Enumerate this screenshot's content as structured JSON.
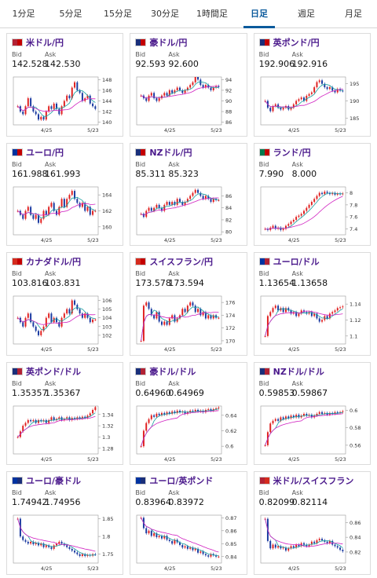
{
  "tabs": [
    {
      "label": "1分足",
      "active": false
    },
    {
      "label": "5分足",
      "active": false
    },
    {
      "label": "15分足",
      "active": false
    },
    {
      "label": "30分足",
      "active": false
    },
    {
      "label": "1時間足",
      "active": false
    },
    {
      "label": "日足",
      "active": true
    },
    {
      "label": "週足",
      "active": false
    },
    {
      "label": "月足",
      "active": false
    }
  ],
  "labels": {
    "bid": "Bid",
    "ask": "Ask"
  },
  "colors": {
    "up": "#e02020",
    "down": "#1a3aa0",
    "ma_short": "#18a0a0",
    "ma_long": "#d020c0",
    "tab_active": "#0a5a9c",
    "pair": "#4b1a8c"
  },
  "pairs": [
    {
      "name": "米ドル/円",
      "bid": "142.528",
      "ask": "142.530",
      "flags": [
        "#b22234",
        "#c40000"
      ],
      "icon": "us-jp-flag-icon",
      "chart_data": {
        "type": "candlestick",
        "x_ticks": [
          "4/25",
          "5/23"
        ],
        "y_ticks": [
          "148",
          "146",
          "144",
          "142",
          "140"
        ],
        "ylim": [
          139.5,
          148.5
        ],
        "close": [
          143.0,
          142.0,
          141.5,
          143.0,
          144.5,
          143.0,
          142.0,
          141.5,
          140.5,
          141.0,
          140.5,
          142.0,
          143.0,
          142.5,
          143.5,
          142.5,
          141.5,
          143.0,
          144.0,
          145.0,
          144.5,
          146.5,
          147.5,
          146.0,
          145.5,
          144.0,
          144.5,
          145.0,
          143.5,
          143.0,
          142.5
        ]
      }
    },
    {
      "name": "豪ドル/円",
      "bid": "92.593",
      "ask": "92.600",
      "flags": [
        "#1a2f7a",
        "#c40000"
      ],
      "icon": "au-jp-flag-icon",
      "chart_data": {
        "type": "candlestick",
        "x_ticks": [
          "4/25",
          "5/23"
        ],
        "y_ticks": [
          "94",
          "92",
          "90",
          "88",
          "86"
        ],
        "ylim": [
          85.5,
          94.5
        ],
        "close": [
          91.0,
          90.5,
          90.0,
          91.0,
          91.5,
          90.5,
          90.0,
          90.5,
          91.0,
          91.5,
          91.0,
          92.0,
          91.5,
          92.0,
          92.5,
          92.0,
          91.5,
          92.0,
          92.5,
          93.0,
          93.5,
          94.5,
          94.0,
          93.0,
          92.5,
          93.0,
          92.5,
          92.0,
          92.5,
          92.8,
          92.6
        ]
      }
    },
    {
      "name": "英ポンド/円",
      "bid": "192.906",
      "ask": "192.916",
      "flags": [
        "#1a2f7a",
        "#c40000"
      ],
      "icon": "gb-jp-flag-icon",
      "chart_data": {
        "type": "candlestick",
        "x_ticks": [
          "4/25",
          "5/23"
        ],
        "y_ticks": [
          "195",
          "190",
          "185"
        ],
        "ylim": [
          183.0,
          197.0
        ],
        "close": [
          190.0,
          188.0,
          187.0,
          188.5,
          189.0,
          188.0,
          187.5,
          188.0,
          188.5,
          187.5,
          188.0,
          189.0,
          190.0,
          190.5,
          191.0,
          190.0,
          191.5,
          192.0,
          192.5,
          194.0,
          195.5,
          196.0,
          195.0,
          194.0,
          193.5,
          194.0,
          193.0,
          192.5,
          193.5,
          193.0,
          192.9
        ]
      }
    },
    {
      "name": "ユーロ/円",
      "bid": "161.988",
      "ask": "161.993",
      "flags": [
        "#0033a0",
        "#c40000"
      ],
      "icon": "eu-jp-flag-icon",
      "chart_data": {
        "type": "candlestick",
        "x_ticks": [
          "4/25",
          "5/23"
        ],
        "y_ticks": [
          "164",
          "162",
          "160"
        ],
        "ylim": [
          159.0,
          165.0
        ],
        "close": [
          162.0,
          161.5,
          161.0,
          162.0,
          162.5,
          161.5,
          161.0,
          161.5,
          160.5,
          161.0,
          162.0,
          161.5,
          162.5,
          163.0,
          162.0,
          161.5,
          162.5,
          163.5,
          162.5,
          163.5,
          164.0,
          164.5,
          163.5,
          163.0,
          162.5,
          163.0,
          162.0,
          162.5,
          161.5,
          162.0,
          162.0
        ]
      }
    },
    {
      "name": "NZドル/円",
      "bid": "85.311",
      "ask": "85.323",
      "flags": [
        "#1a2f7a",
        "#c40000"
      ],
      "icon": "nz-jp-flag-icon",
      "chart_data": {
        "type": "candlestick",
        "x_ticks": [
          "4/25",
          "5/23"
        ],
        "y_ticks": [
          "86",
          "84",
          "82",
          "80"
        ],
        "ylim": [
          79.5,
          87.5
        ],
        "close": [
          83.0,
          82.5,
          83.5,
          84.0,
          83.5,
          84.0,
          84.5,
          84.0,
          83.5,
          84.5,
          85.0,
          84.5,
          85.0,
          84.5,
          85.5,
          85.0,
          84.5,
          85.0,
          85.5,
          86.0,
          86.5,
          87.0,
          86.5,
          86.0,
          85.5,
          86.0,
          85.5,
          85.0,
          85.5,
          85.3,
          85.3
        ]
      }
    },
    {
      "name": "ランド/円",
      "bid": "7.990",
      "ask": "8.000",
      "flags": [
        "#007a4d",
        "#c40000"
      ],
      "icon": "za-jp-flag-icon",
      "chart_data": {
        "type": "candlestick",
        "x_ticks": [
          "4/25",
          "5/23"
        ],
        "y_ticks": [
          "8",
          "7.8",
          "7.6",
          "7.4"
        ],
        "ylim": [
          7.3,
          8.1
        ],
        "close": [
          7.4,
          7.38,
          7.42,
          7.45,
          7.4,
          7.42,
          7.38,
          7.4,
          7.45,
          7.48,
          7.52,
          7.55,
          7.6,
          7.62,
          7.65,
          7.7,
          7.75,
          7.8,
          7.85,
          7.9,
          7.95,
          8.0,
          7.98,
          8.02,
          8.0,
          7.98,
          8.0,
          7.97,
          7.99,
          7.98,
          7.99
        ]
      }
    },
    {
      "name": "カナダドル/円",
      "bid": "103.816",
      "ask": "103.831",
      "flags": [
        "#d52b1e",
        "#c40000"
      ],
      "icon": "ca-jp-flag-icon",
      "chart_data": {
        "type": "candlestick",
        "x_ticks": [
          "4/25",
          "5/23"
        ],
        "y_ticks": [
          "106",
          "105",
          "104",
          "103",
          "102"
        ],
        "ylim": [
          101.0,
          106.5
        ],
        "close": [
          104.0,
          103.5,
          103.0,
          104.0,
          104.5,
          103.5,
          103.0,
          102.5,
          102.0,
          102.5,
          103.0,
          104.0,
          104.5,
          103.5,
          104.0,
          103.5,
          103.0,
          104.0,
          104.5,
          105.0,
          104.5,
          106.0,
          105.5,
          105.0,
          104.5,
          104.0,
          104.5,
          104.0,
          103.5,
          103.8,
          103.8
        ]
      }
    },
    {
      "name": "スイスフラン/円",
      "bid": "173.578",
      "ask": "173.594",
      "flags": [
        "#d52b1e",
        "#c40000"
      ],
      "icon": "ch-jp-flag-icon",
      "chart_data": {
        "type": "candlestick",
        "x_ticks": [
          "4/25",
          "5/23"
        ],
        "y_ticks": [
          "176",
          "174",
          "172",
          "170"
        ],
        "ylim": [
          169.5,
          177.0
        ],
        "close": [
          170.0,
          175.5,
          176.0,
          175.0,
          174.0,
          173.5,
          174.5,
          173.0,
          172.5,
          173.0,
          172.5,
          173.5,
          174.0,
          173.0,
          173.5,
          174.0,
          175.0,
          174.5,
          175.5,
          176.0,
          175.5,
          174.5,
          175.0,
          174.0,
          174.5,
          173.5,
          174.0,
          173.5,
          174.0,
          173.6,
          173.6
        ]
      }
    },
    {
      "name": "ユーロ/ドル",
      "bid": "1.13654",
      "ask": "1.13658",
      "flags": [
        "#0033a0",
        "#b22234"
      ],
      "icon": "eu-us-flag-icon",
      "chart_data": {
        "type": "candlestick",
        "x_ticks": [
          "4/25",
          "5/23"
        ],
        "y_ticks": [
          "1.14",
          "1.12",
          "1.1"
        ],
        "ylim": [
          1.09,
          1.15
        ],
        "close": [
          1.1,
          1.125,
          1.13,
          1.135,
          1.138,
          1.132,
          1.135,
          1.13,
          1.135,
          1.132,
          1.128,
          1.13,
          1.125,
          1.128,
          1.132,
          1.13,
          1.128,
          1.13,
          1.125,
          1.128,
          1.122,
          1.118,
          1.12,
          1.125,
          1.122,
          1.128,
          1.13,
          1.132,
          1.135,
          1.136,
          1.137
        ]
      }
    },
    {
      "name": "英ポンド/ドル",
      "bid": "1.35357",
      "ask": "1.35367",
      "flags": [
        "#1a2f7a",
        "#b22234"
      ],
      "icon": "gb-us-flag-icon",
      "chart_data": {
        "type": "candlestick",
        "x_ticks": [
          "4/25",
          "5/23"
        ],
        "y_ticks": [
          "1.34",
          "1.32",
          "1.3",
          "1.28"
        ],
        "ylim": [
          1.27,
          1.355
        ],
        "close": [
          1.3,
          1.31,
          1.32,
          1.325,
          1.33,
          1.328,
          1.33,
          1.325,
          1.33,
          1.328,
          1.33,
          1.325,
          1.33,
          1.335,
          1.33,
          1.332,
          1.335,
          1.33,
          1.332,
          1.335,
          1.33,
          1.334,
          1.332,
          1.335,
          1.333,
          1.336,
          1.334,
          1.338,
          1.342,
          1.348,
          1.353
        ]
      }
    },
    {
      "name": "豪ドル/ドル",
      "bid": "0.64960",
      "ask": "0.64969",
      "flags": [
        "#1a2f7a",
        "#b22234"
      ],
      "icon": "au-us-flag-icon",
      "chart_data": {
        "type": "candlestick",
        "x_ticks": [
          "4/25",
          "5/23"
        ],
        "y_ticks": [
          "0.64",
          "0.62",
          "0.6"
        ],
        "ylim": [
          0.59,
          0.652
        ],
        "close": [
          0.6,
          0.62,
          0.63,
          0.635,
          0.64,
          0.638,
          0.642,
          0.64,
          0.643,
          0.641,
          0.644,
          0.642,
          0.645,
          0.643,
          0.646,
          0.644,
          0.645,
          0.642,
          0.644,
          0.646,
          0.645,
          0.647,
          0.645,
          0.646,
          0.644,
          0.647,
          0.648,
          0.646,
          0.648,
          0.649,
          0.65
        ]
      }
    },
    {
      "name": "NZドル/ドル",
      "bid": "0.59853",
      "ask": "0.59867",
      "flags": [
        "#1a2f7a",
        "#b22234"
      ],
      "icon": "nz-us-flag-icon",
      "chart_data": {
        "type": "candlestick",
        "x_ticks": [
          "4/25",
          "5/23"
        ],
        "y_ticks": [
          "0.6",
          "0.58",
          "0.56"
        ],
        "ylim": [
          0.55,
          0.605
        ],
        "close": [
          0.56,
          0.575,
          0.585,
          0.588,
          0.59,
          0.588,
          0.592,
          0.59,
          0.593,
          0.591,
          0.594,
          0.592,
          0.595,
          0.592,
          0.594,
          0.596,
          0.594,
          0.595,
          0.592,
          0.594,
          0.596,
          0.598,
          0.596,
          0.597,
          0.595,
          0.597,
          0.596,
          0.598,
          0.597,
          0.598,
          0.599
        ]
      }
    },
    {
      "name": "ユーロ/豪ドル",
      "bid": "1.74942",
      "ask": "1.74956",
      "flags": [
        "#0033a0",
        "#1a2f7a"
      ],
      "icon": "eu-au-flag-icon",
      "chart_data": {
        "type": "candlestick",
        "x_ticks": [
          "4/25",
          "5/23"
        ],
        "y_ticks": [
          "1.85",
          "1.8",
          "1.75"
        ],
        "ylim": [
          1.725,
          1.86
        ],
        "close": [
          1.85,
          1.8,
          1.79,
          1.785,
          1.78,
          1.785,
          1.778,
          1.782,
          1.775,
          1.78,
          1.77,
          1.775,
          1.77,
          1.765,
          1.775,
          1.78,
          1.785,
          1.78,
          1.775,
          1.77,
          1.765,
          1.76,
          1.755,
          1.75,
          1.745,
          1.75,
          1.745,
          1.748,
          1.746,
          1.75,
          1.749
        ]
      }
    },
    {
      "name": "ユーロ/英ポンド",
      "bid": "0.83964",
      "ask": "0.83972",
      "flags": [
        "#0033a0",
        "#1a2f7a"
      ],
      "icon": "eu-gb-flag-icon",
      "chart_data": {
        "type": "candlestick",
        "x_ticks": [
          "4/25",
          "5/23"
        ],
        "y_ticks": [
          "0.87",
          "0.86",
          "0.85",
          "0.84"
        ],
        "ylim": [
          0.835,
          0.872
        ],
        "close": [
          0.87,
          0.862,
          0.858,
          0.86,
          0.856,
          0.858,
          0.855,
          0.856,
          0.854,
          0.856,
          0.853,
          0.852,
          0.85,
          0.853,
          0.851,
          0.849,
          0.847,
          0.848,
          0.846,
          0.847,
          0.845,
          0.846,
          0.843,
          0.844,
          0.842,
          0.841,
          0.84,
          0.842,
          0.841,
          0.84,
          0.84
        ]
      }
    },
    {
      "name": "米ドル/スイスフラン",
      "bid": "0.82099",
      "ask": "0.82114",
      "flags": [
        "#b22234",
        "#d52b1e"
      ],
      "icon": "us-ch-flag-icon",
      "chart_data": {
        "type": "candlestick",
        "x_ticks": [
          "4/25",
          "5/23"
        ],
        "y_ticks": [
          "0.86",
          "0.84",
          "0.82"
        ],
        "ylim": [
          0.805,
          0.87
        ],
        "close": [
          0.865,
          0.835,
          0.825,
          0.83,
          0.826,
          0.828,
          0.825,
          0.826,
          0.822,
          0.825,
          0.828,
          0.826,
          0.83,
          0.828,
          0.832,
          0.83,
          0.828,
          0.83,
          0.834,
          0.832,
          0.836,
          0.838,
          0.836,
          0.834,
          0.832,
          0.835,
          0.83,
          0.828,
          0.826,
          0.823,
          0.821
        ]
      }
    }
  ]
}
